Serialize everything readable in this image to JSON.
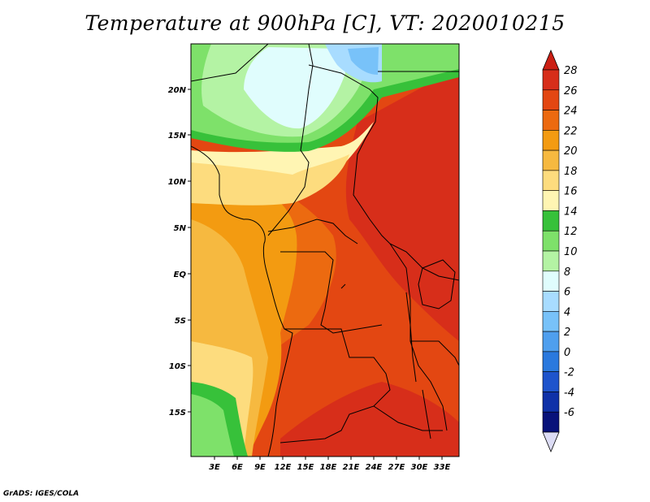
{
  "title": "Temperature at 900hPa [C], VT: 2020010215",
  "footer": "GrADS: IGES/COLA",
  "map": {
    "lat_labels": [
      "20N",
      "15N",
      "10N",
      "5N",
      "EQ",
      "5S",
      "10S",
      "15S"
    ],
    "lon_labels": [
      "3E",
      "6E",
      "9E",
      "12E",
      "15E",
      "18E",
      "21E",
      "24E",
      "27E",
      "30E",
      "33E"
    ]
  },
  "colorbar": {
    "labels": [
      "28",
      "26",
      "24",
      "22",
      "20",
      "18",
      "16",
      "14",
      "12",
      "10",
      "8",
      "6",
      "4",
      "2",
      "0",
      "-2",
      "-4",
      "-6"
    ],
    "colors": [
      "#d72e1a",
      "#e34712",
      "#ec6a10",
      "#f39b11",
      "#f6b940",
      "#fddc7e",
      "#fff5b3",
      "#37c13a",
      "#7ee16a",
      "#b4f3a4",
      "#e0fdfd",
      "#a8dcff",
      "#78c2f9",
      "#4f9fee",
      "#2a79de",
      "#1e54cc",
      "#0f31a8",
      "#08127a"
    ],
    "top_arrow_color": "#cb1f14",
    "bottom_arrow_color": "#dcdcf5"
  }
}
